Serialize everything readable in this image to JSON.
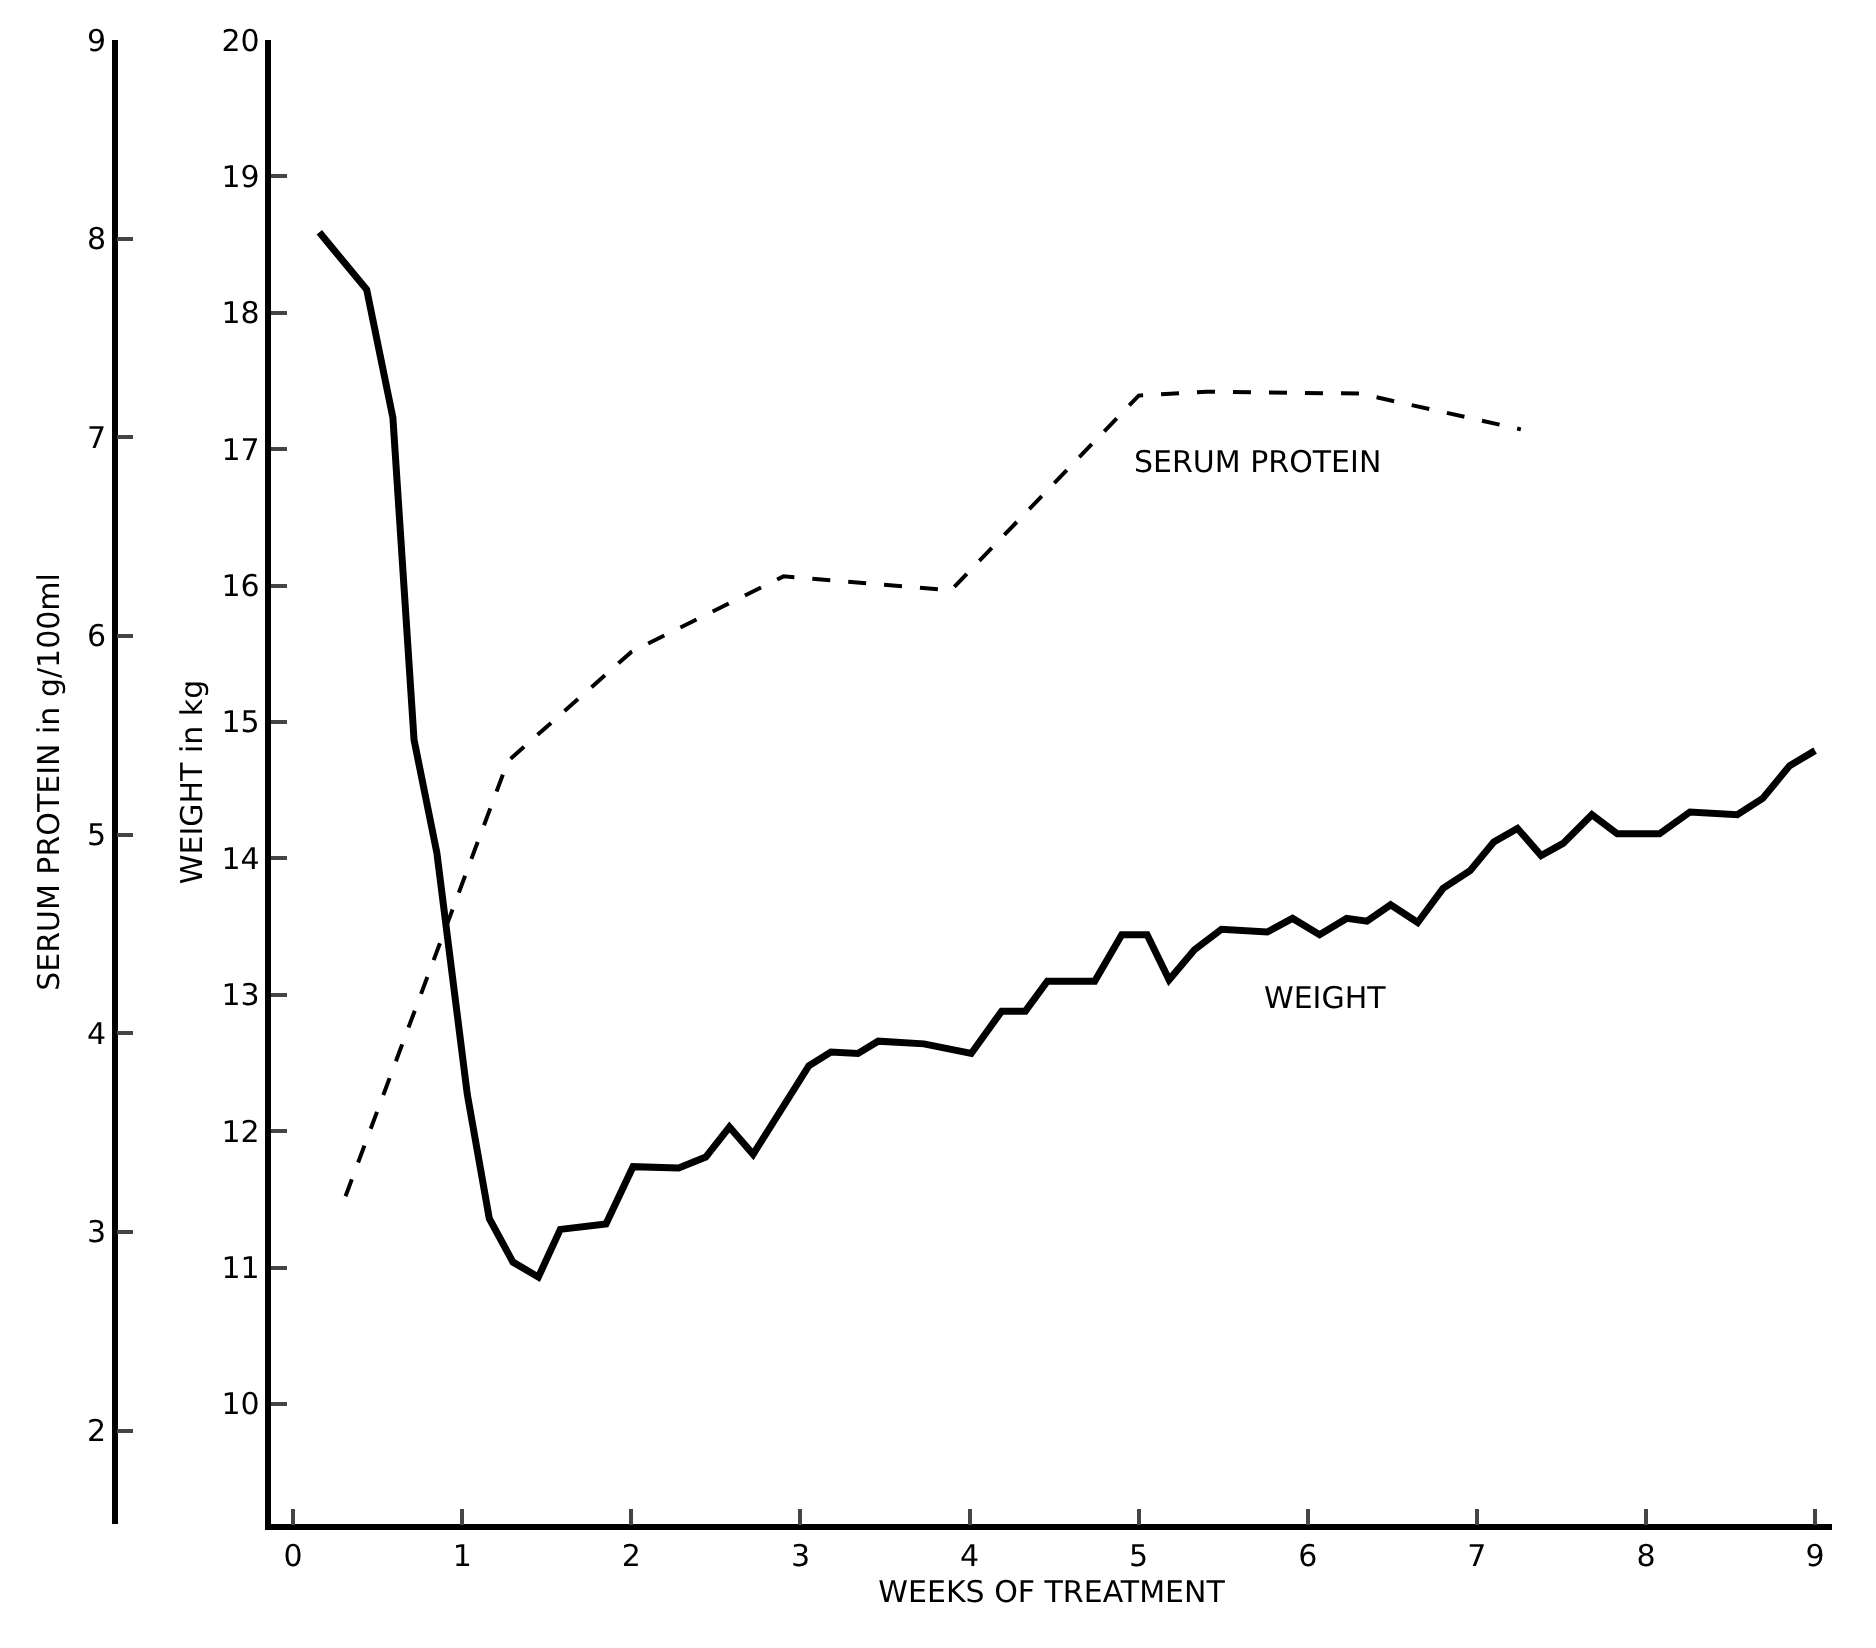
{
  "chart_data": {
    "type": "line",
    "xlabel": "WEEKS OF TREATMENT",
    "ylabel": "WEIGHT in kg",
    "y2label": "SERUM PROTEIN in g/100ml",
    "xlim": [
      -0.13,
      9.1
    ],
    "xticks": [
      0,
      1,
      2,
      3,
      4,
      5,
      6,
      7,
      8,
      9
    ],
    "ylim": [
      9.12,
      20
    ],
    "yticks": [
      10,
      11,
      12,
      13,
      14,
      15,
      16,
      17,
      18,
      19,
      20
    ],
    "y2lim": [
      1.53,
      9
    ],
    "y2ticks": [
      2,
      3,
      4,
      5,
      6,
      7,
      8,
      9
    ],
    "series": [
      {
        "name": "WEIGHT",
        "color": "#000000",
        "line_style": "solid",
        "x": [
          0.155,
          0.435,
          0.59,
          0.715,
          0.85,
          1.03,
          1.16,
          1.3,
          1.45,
          1.58,
          1.85,
          2.01,
          2.28,
          2.44,
          2.58,
          2.72,
          3.05,
          3.18,
          3.34,
          3.46,
          3.73,
          4.01,
          4.19,
          4.33,
          4.46,
          4.74,
          4.9,
          5.05,
          5.18,
          5.33,
          5.49,
          5.76,
          5.91,
          6.07,
          6.23,
          6.35,
          6.49,
          6.65,
          6.8,
          6.96,
          7.1,
          7.24,
          7.38,
          7.51,
          7.68,
          7.83,
          8.08,
          8.26,
          8.54,
          8.69,
          8.85,
          9.0
        ],
        "values": [
          18.59,
          18.17,
          17.23,
          14.87,
          14.04,
          12.27,
          11.36,
          11.04,
          10.93,
          11.28,
          11.32,
          11.74,
          11.73,
          11.81,
          12.03,
          11.83,
          12.48,
          12.58,
          12.57,
          12.66,
          12.64,
          12.57,
          12.88,
          12.88,
          13.1,
          13.1,
          13.44,
          13.44,
          13.11,
          13.33,
          13.48,
          13.46,
          13.56,
          13.44,
          13.56,
          13.54,
          13.66,
          13.53,
          13.78,
          13.91,
          14.12,
          14.22,
          14.02,
          14.11,
          14.32,
          14.18,
          14.18,
          14.34,
          14.32,
          14.44,
          14.68,
          14.79
        ]
      },
      {
        "name": "SERUM PROTEIN",
        "color": "#000000",
        "line_style": "dashed",
        "axis": "y2",
        "x": [
          0.31,
          1.27,
          2.0,
          2.9,
          3.89,
          5.0,
          5.4,
          6.31,
          7.26
        ],
        "values": [
          3.18,
          5.37,
          5.92,
          6.3,
          6.23,
          7.21,
          7.23,
          7.22,
          7.04
        ]
      }
    ]
  }
}
